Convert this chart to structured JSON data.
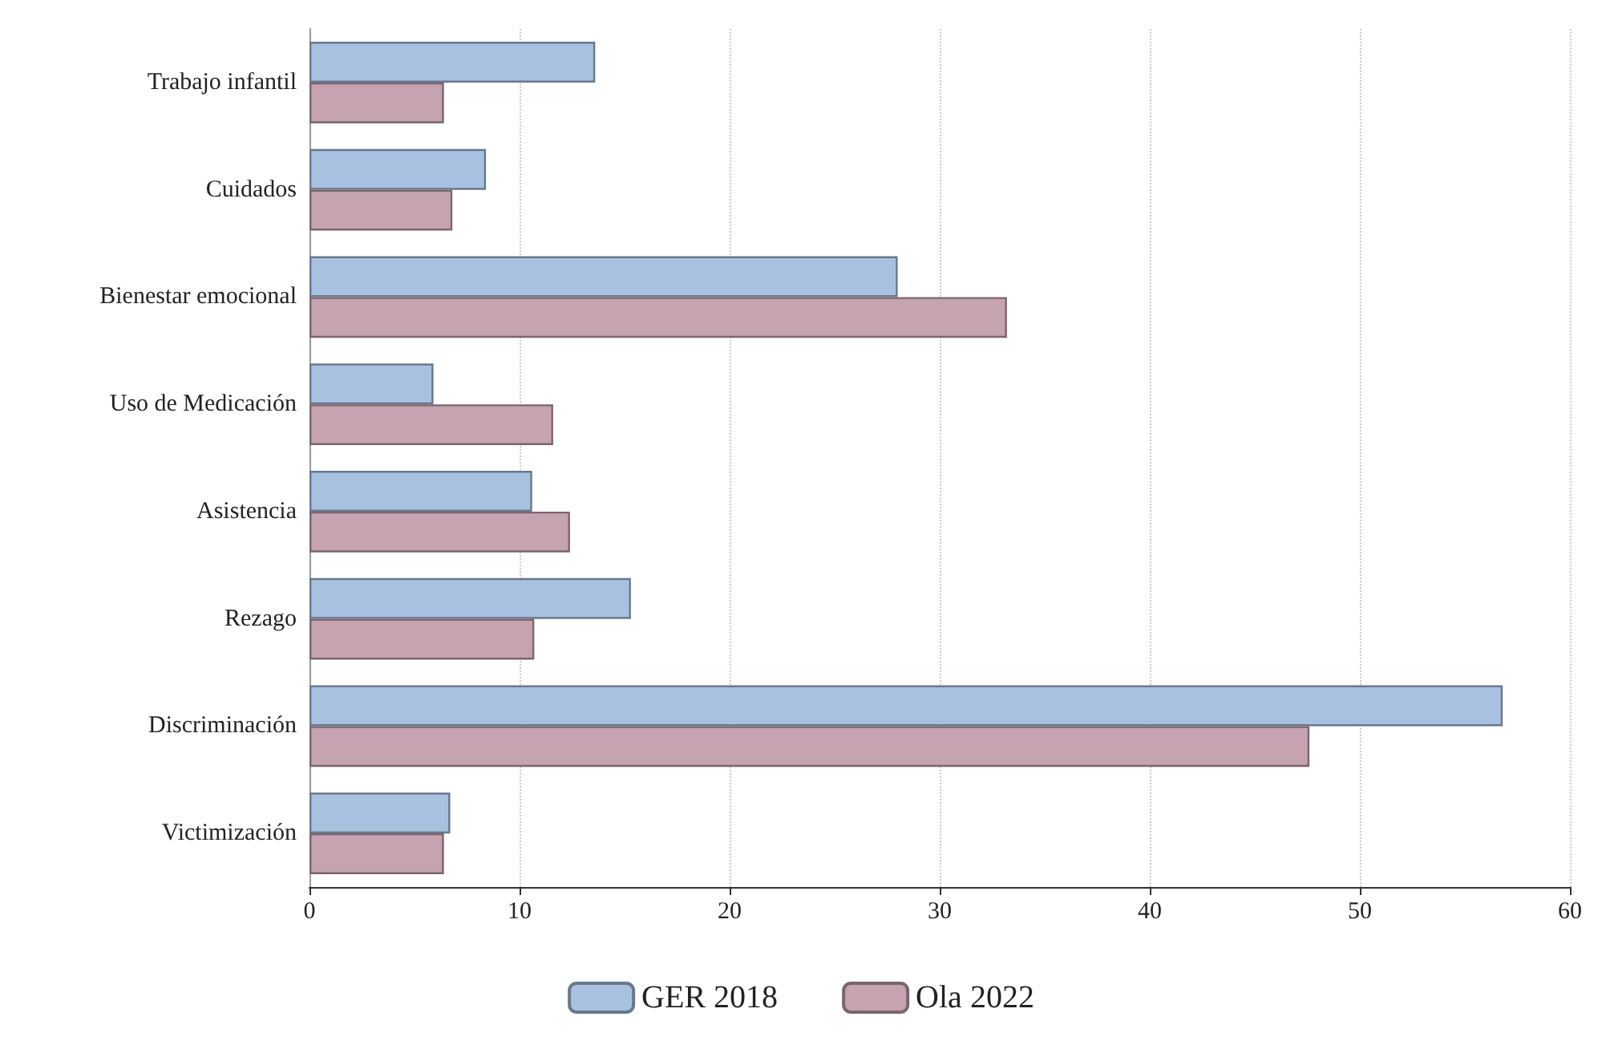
{
  "chart_data": {
    "type": "bar",
    "orientation": "horizontal",
    "categories": [
      "Trabajo infantil",
      "Cuidados",
      "Bienestar emocional",
      "Uso de Medicación",
      "Asistencia",
      "Rezago",
      "Discriminación",
      "Victimización"
    ],
    "series": [
      {
        "name": "GER 2018",
        "color": "#a9c1e1",
        "values": [
          13.6,
          8.4,
          28.0,
          5.9,
          10.6,
          15.3,
          56.8,
          6.7
        ]
      },
      {
        "name": "Ola 2022",
        "color": "#c6a3b0",
        "values": [
          6.4,
          6.8,
          33.2,
          11.6,
          12.4,
          10.7,
          47.6,
          6.4
        ]
      }
    ],
    "xlim": [
      0,
      60
    ],
    "xticks": [
      0,
      10,
      20,
      30,
      40,
      50,
      60
    ],
    "grid": "x",
    "legend": "bottom"
  }
}
